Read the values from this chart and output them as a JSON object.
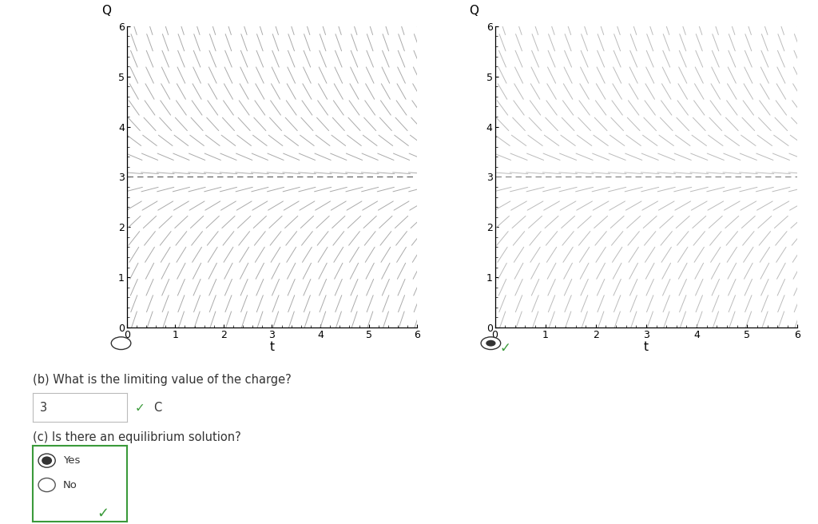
{
  "fig_width": 10.24,
  "fig_height": 6.56,
  "bg_color": "#ffffff",
  "plot1": {
    "xlim": [
      0,
      6
    ],
    "ylim": [
      0,
      6
    ],
    "xlabel": "t",
    "ylabel": "Q",
    "xticks": [
      0,
      1,
      2,
      3,
      4,
      5,
      6
    ],
    "yticks": [
      0,
      1,
      2,
      3,
      4,
      5,
      6
    ],
    "dashed_line_y": 3,
    "arrow_color": "#aaaaaa",
    "dashed_color": "#666666",
    "nx": 19,
    "ny": 19
  },
  "plot2": {
    "xlim": [
      0,
      6
    ],
    "ylim": [
      0,
      6
    ],
    "xlabel": "t",
    "ylabel": "Q",
    "xticks": [
      0,
      1,
      2,
      3,
      4,
      5,
      6
    ],
    "yticks": [
      0,
      1,
      2,
      3,
      4,
      5,
      6
    ],
    "dashed_line_y": 3,
    "arrow_color": "#bbbbbb",
    "dashed_color": "#888888",
    "nx": 19,
    "ny": 19
  },
  "text_b_question": "(b) What is the limiting value of the charge?",
  "text_b_answer": "3",
  "text_b_unit": "C",
  "text_c_question": "(c) Is there an equilibrium solution?",
  "text_yes": "Yes",
  "text_no": "No",
  "green_color": "#3a9a3a",
  "text_color": "#333333",
  "font_size_question": 10.5,
  "font_size_answer": 10.5
}
